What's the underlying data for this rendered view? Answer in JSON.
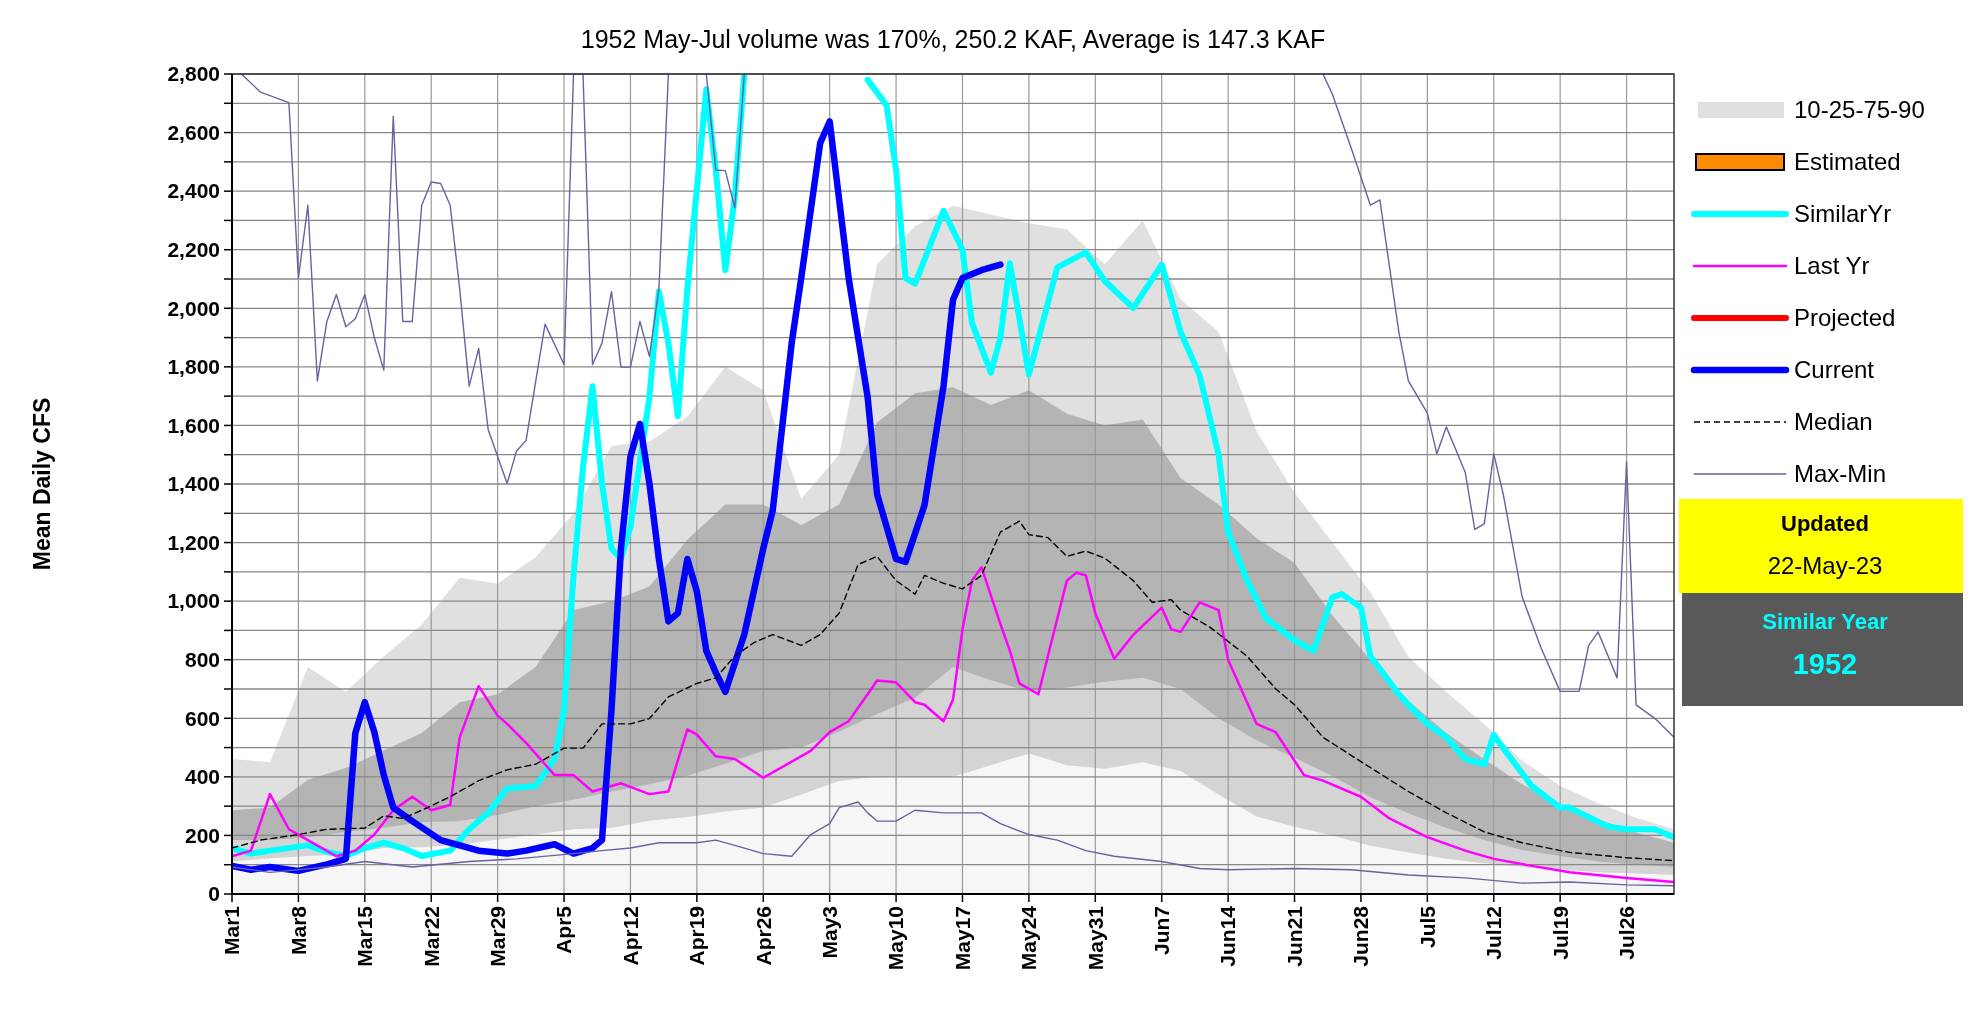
{
  "chart_data": {
    "type": "line",
    "title": "1952 May-Jul volume was 170%, 250.2 KAF, Average is 147.3 KAF",
    "ylabel": "Mean Daily CFS",
    "xlim": [
      "--03-01",
      "--07-31"
    ],
    "xticks": [
      {
        "value": "--03-01",
        "label": "Mar1"
      },
      {
        "value": "--03-08",
        "label": "Mar8"
      },
      {
        "value": "--03-15",
        "label": "Mar15"
      },
      {
        "value": "--03-22",
        "label": "Mar22"
      },
      {
        "value": "--03-29",
        "label": "Mar29"
      },
      {
        "value": "--04-05",
        "label": "Apr5"
      },
      {
        "value": "--04-12",
        "label": "Apr12"
      },
      {
        "value": "--04-19",
        "label": "Apr19"
      },
      {
        "value": "--04-26",
        "label": "Apr26"
      },
      {
        "value": "--05-03",
        "label": "May3"
      },
      {
        "value": "--05-10",
        "label": "May10"
      },
      {
        "value": "--05-17",
        "label": "May17"
      },
      {
        "value": "--05-24",
        "label": "May24"
      },
      {
        "value": "--05-31",
        "label": "May31"
      },
      {
        "value": "--06-07",
        "label": "Jun7"
      },
      {
        "value": "--06-14",
        "label": "Jun14"
      },
      {
        "value": "--06-21",
        "label": "Jun21"
      },
      {
        "value": "--06-28",
        "label": "Jun28"
      },
      {
        "value": "--07-05",
        "label": "Jul5"
      },
      {
        "value": "--07-12",
        "label": "Jul12"
      },
      {
        "value": "--07-19",
        "label": "Jul19"
      },
      {
        "value": "--07-26",
        "label": "Jul26"
      }
    ],
    "ylim": [
      0,
      2800
    ],
    "yticks": [
      0,
      {
        "value": 100,
        "label": null
      },
      200,
      {
        "value": 300,
        "label": null
      },
      400,
      {
        "value": 500,
        "label": null
      },
      600,
      {
        "value": 700,
        "label": null
      },
      800,
      {
        "value": 900,
        "label": null
      },
      {
        "value": 1000,
        "label": "1,000"
      },
      {
        "value": 1100,
        "label": null
      },
      {
        "value": 1200,
        "label": "1,200"
      },
      {
        "value": 1300,
        "label": null
      },
      {
        "value": 1400,
        "label": "1,400"
      },
      {
        "value": 1500,
        "label": null
      },
      {
        "value": 1600,
        "label": "1,600"
      },
      {
        "value": 1700,
        "label": null
      },
      {
        "value": 1800,
        "label": "1,800"
      },
      {
        "value": 1900,
        "label": null
      },
      {
        "value": 2000,
        "label": "2,000"
      },
      {
        "value": 2100,
        "label": null
      },
      {
        "value": 2200,
        "label": "2,200"
      },
      {
        "value": 2300,
        "label": null
      },
      {
        "value": 2400,
        "label": "2,400"
      },
      {
        "value": 2500,
        "label": null
      },
      {
        "value": 2600,
        "label": "2,600"
      },
      {
        "value": 2700,
        "label": null
      },
      {
        "value": 2800,
        "label": "2,800"
      }
    ],
    "grid": true,
    "legend": "right",
    "annotations": [
      "Updated",
      "22-May-23",
      "Similar Year",
      "1952"
    ],
    "x": [
      "--03-01",
      "--03-05",
      "--03-09",
      "--03-13",
      "--03-17",
      "--03-21",
      "--03-25",
      "--03-29",
      "--04-02",
      "--04-06",
      "--04-10",
      "--04-14",
      "--04-18",
      "--04-22",
      "--04-26",
      "--04-30",
      "--05-04",
      "--05-08",
      "--05-12",
      "--05-16",
      "--05-20",
      "--05-24",
      "--05-28",
      "--06-01",
      "--06-05",
      "--06-09",
      "--06-13",
      "--06-17",
      "--06-21",
      "--06-25",
      "--06-29",
      "--07-03",
      "--07-07",
      "--07-11",
      "--07-15",
      "--07-19",
      "--07-23",
      "--07-27",
      "--07-31"
    ],
    "series": [
      {
        "type": "area",
        "name": "10-25-75-90",
        "color": "#e0e0e0",
        "values": [
          461,
          450,
          775,
          690,
          812,
          920,
          1080,
          1060,
          1150,
          1300,
          1530,
          1545,
          1630,
          1800,
          1720,
          1350,
          1500,
          2150,
          2280,
          2350,
          2320,
          2290,
          2270,
          2150,
          2300,
          2030,
          1920,
          1580,
          1370,
          1200,
          1030,
          810,
          690,
          580,
          455,
          370,
          310,
          260,
          221
        ]
      },
      {
        "type": "area",
        "color": "#b4b4b4",
        "values": [
          286,
          295,
          390,
          430,
          490,
          550,
          655,
          682,
          775,
          970,
          1000,
          1050,
          1210,
          1330,
          1330,
          1260,
          1330,
          1610,
          1710,
          1730,
          1670,
          1720,
          1640,
          1600,
          1620,
          1420,
          1330,
          1215,
          1130,
          950,
          800,
          660,
          550,
          460,
          375,
          305,
          255,
          210,
          175
        ]
      },
      {
        "type": "area",
        "color": "#d4d4d4",
        "values": [
          184,
          184,
          194,
          212,
          226,
          245,
          249,
          270,
          300,
          322,
          350,
          375,
          404,
          445,
          489,
          500,
          555,
          615,
          670,
          775,
          730,
          692,
          705,
          725,
          738,
          700,
          600,
          525,
          465,
          403,
          330,
          276,
          226,
          184,
          150,
          130,
          111,
          100,
          92
        ]
      },
      {
        "type": "area",
        "color": "#f6f6f6",
        "values": [
          111,
          122,
          130,
          136,
          157,
          160,
          168,
          186,
          203,
          221,
          225,
          250,
          263,
          282,
          295,
          340,
          386,
          400,
          400,
          400,
          440,
          480,
          440,
          428,
          450,
          420,
          340,
          265,
          230,
          200,
          165,
          142,
          120,
          105,
          93,
          84,
          74,
          70,
          65
        ]
      },
      {
        "type": "area",
        "name": "Estimated",
        "color": "#ff8c00",
        "values": [
          null,
          null,
          null,
          null,
          null,
          null,
          null,
          null,
          null,
          null,
          null,
          null,
          null,
          null,
          null,
          null,
          null,
          null,
          null,
          null,
          null,
          null,
          null,
          null,
          null,
          null,
          null,
          null,
          null,
          null,
          null,
          null,
          null,
          null,
          null,
          null,
          null,
          null,
          null
        ]
      },
      {
        "name": "SimilarYr",
        "color": "#00ffff",
        "x": [
          "--03-01",
          "--03-03",
          "--03-05",
          "--03-09",
          "--03-11",
          "--03-13",
          "--03-15",
          "--03-17",
          "--03-19",
          "--03-21",
          "--03-24",
          "--03-26",
          "--03-28",
          "--03-30",
          "--04-02",
          "--04-04",
          "--04-05",
          "--04-06",
          "--04-07",
          "--04-08",
          "--04-09",
          "--04-10",
          "--04-11",
          "--04-12",
          "--04-14",
          "--04-15",
          "--04-16",
          "--04-17",
          "--04-18",
          "--04-20",
          "--04-21",
          "--04-22",
          "--04-23",
          "--04-24",
          "--04-25",
          "--05-06",
          "--05-07",
          "--05-09",
          "--05-10",
          "--05-11",
          "--05-12",
          "--05-14",
          "--05-15",
          "--05-17",
          "--05-18",
          "--05-20",
          "--05-21",
          "--05-22",
          "--05-24",
          "--05-27",
          "--05-30",
          "--06-01",
          "--06-04",
          "--06-07",
          "--06-09",
          "--06-11",
          "--06-13",
          "--06-14",
          "--06-16",
          "--06-18",
          "--06-21",
          "--06-23",
          "--06-25",
          "--06-26",
          "--06-28",
          "--06-29",
          "--07-02",
          "--07-03",
          "--07-05",
          "--07-07",
          "--07-09",
          "--07-11",
          "--07-12",
          "--07-13",
          "--07-16",
          "--07-19",
          "--07-20",
          "--07-24",
          "--07-26",
          "--07-29",
          "--07-31"
        ],
        "values": [
          157,
          138,
          148,
          166,
          144,
          130,
          157,
          175,
          157,
          130,
          148,
          221,
          277,
          360,
          369,
          461,
          627,
          1088,
          1457,
          1734,
          1402,
          1180,
          1144,
          1254,
          1697,
          2057,
          1881,
          1632,
          2066,
          2748,
          2472,
          2130,
          2380,
          2800,
          null,
          null,
          2780,
          2693,
          2472,
          2103,
          2084,
          2250,
          2333,
          2200,
          1950,
          1780,
          1900,
          2154,
          1774,
          2140,
          2191,
          2093,
          2001,
          2149,
          1918,
          1771,
          1500,
          1236,
          1070,
          941,
          867,
          830,
          1014,
          1024,
          978,
          812,
          682,
          646,
          581,
          535,
          461,
          443,
          544,
          498,
          369,
          295,
          295,
          231,
          221,
          221,
          194
        ]
      },
      {
        "name": "Last Yr",
        "color": "#ff00ff",
        "x": [
          "--03-01",
          "--03-03",
          "--03-05",
          "--03-07",
          "--03-09",
          "--03-12",
          "--03-14",
          "--03-16",
          "--03-18",
          "--03-20",
          "--03-22",
          "--03-24",
          "--03-25",
          "--03-27",
          "--03-29",
          "--03-30",
          "--04-01",
          "--04-03",
          "--04-04",
          "--04-06",
          "--04-08",
          "--04-11",
          "--04-14",
          "--04-16",
          "--04-18",
          "--04-19",
          "--04-21",
          "--04-23",
          "--04-26",
          "--04-29",
          "--05-01",
          "--05-03",
          "--05-05",
          "--05-07",
          "--05-08",
          "--05-10",
          "--05-12",
          "--05-13",
          "--05-15",
          "--05-16",
          "--05-17",
          "--05-18",
          "--05-19",
          "--05-21",
          "--05-22",
          "--05-23",
          "--05-25",
          "--05-26",
          "--05-28",
          "--05-29",
          "--05-30",
          "--05-31",
          "--06-02",
          "--06-04",
          "--06-07",
          "--06-08",
          "--06-09",
          "--06-11",
          "--06-13",
          "--06-14",
          "--06-17",
          "--06-19",
          "--06-22",
          "--06-24",
          "--06-28",
          "--07-01",
          "--07-05",
          "--07-09",
          "--07-12",
          "--07-16",
          "--07-20",
          "--07-26",
          "--07-31"
        ],
        "values": [
          129,
          148,
          341,
          221,
          184,
          129,
          148,
          203,
          286,
          332,
          286,
          304,
          535,
          710,
          609,
          581,
          516,
          443,
          406,
          406,
          350,
          378,
          341,
          350,
          562,
          544,
          470,
          461,
          397,
          452,
          489,
          553,
          590,
          682,
          729,
          723,
          655,
          646,
          590,
          664,
          904,
          1070,
          1116,
          922,
          830,
          719,
          682,
          812,
          1070,
          1097,
          1088,
          959,
          803,
          885,
          978,
          904,
          895,
          996,
          969,
          800,
          581,
          553,
          406,
          387,
          332,
          258,
          194,
          148,
          120,
          96,
          74,
          55,
          41
        ]
      },
      {
        "name": "Projected",
        "color": "#ff0000",
        "values": [
          null,
          null,
          null,
          null,
          null,
          null,
          null,
          null,
          null,
          null,
          null,
          null,
          null,
          null,
          null,
          null,
          null,
          null,
          null,
          null,
          null,
          null,
          null,
          null,
          null,
          null,
          null,
          null,
          null,
          null,
          null,
          null,
          null,
          null,
          null,
          null,
          null,
          null,
          null
        ]
      },
      {
        "name": "Current",
        "color": "#0000ff",
        "x": [
          "--03-01",
          "--03-03",
          "--03-05",
          "--03-08",
          "--03-11",
          "--03-13",
          "--03-14",
          "--03-15",
          "--03-16",
          "--03-17",
          "--03-18",
          "--03-20",
          "--03-23",
          "--03-25",
          "--03-27",
          "--03-30",
          "--04-01",
          "--04-04",
          "--04-06",
          "--04-08",
          "--04-09",
          "--04-10",
          "--04-11",
          "--04-12",
          "--04-13",
          "--04-14",
          "--04-15",
          "--04-16",
          "--04-17",
          "--04-18",
          "--04-19",
          "--04-20",
          "--04-21",
          "--04-22",
          "--04-24",
          "--04-26",
          "--04-27",
          "--04-29",
          "--04-30",
          "--05-02",
          "--05-03",
          "--05-05",
          "--05-07",
          "--05-08",
          "--05-10",
          "--05-11",
          "--05-13",
          "--05-15",
          "--05-16",
          "--05-17",
          "--05-19",
          "--05-21"
        ],
        "values": [
          96,
          83,
          92,
          79,
          101,
          120,
          550,
          655,
          553,
          406,
          295,
          249,
          184,
          166,
          148,
          138,
          148,
          170,
          138,
          157,
          184,
          627,
          1180,
          1494,
          1605,
          1402,
          1144,
          931,
          959,
          1144,
          1033,
          830,
          756,
          690,
          886,
          1180,
          1310,
          1882,
          2103,
          2564,
          2638,
          2103,
          1697,
          1365,
          1144,
          1134,
          1328,
          1734,
          2029,
          2103,
          2130,
          2149
        ]
      },
      {
        "name": "Median",
        "color": "#000000",
        "line_style": "dashed",
        "x": [
          "--03-01",
          "--03-04",
          "--03-08",
          "--03-11",
          "--03-15",
          "--03-17",
          "--03-19",
          "--03-21",
          "--03-24",
          "--03-27",
          "--03-30",
          "--04-02",
          "--04-05",
          "--04-07",
          "--04-09",
          "--04-12",
          "--04-14",
          "--04-16",
          "--04-19",
          "--04-21",
          "--04-23",
          "--04-25",
          "--04-27",
          "--04-30",
          "--05-02",
          "--05-04",
          "--05-06",
          "--05-08",
          "--05-10",
          "--05-12",
          "--05-13",
          "--05-15",
          "--05-17",
          "--05-19",
          "--05-21",
          "--05-23",
          "--05-24",
          "--05-26",
          "--05-28",
          "--05-30",
          "--06-01",
          "--06-04",
          "--06-06",
          "--06-08",
          "--06-09",
          "--06-12",
          "--06-16",
          "--06-19",
          "--06-21",
          "--06-24",
          "--06-28",
          "--07-03",
          "--07-07",
          "--07-11",
          "--07-15",
          "--07-20",
          "--07-26",
          "--07-31"
        ],
        "values": [
          157,
          184,
          203,
          221,
          225,
          267,
          258,
          286,
          332,
          387,
          424,
          443,
          498,
          498,
          581,
          581,
          599,
          673,
          719,
          738,
          812,
          858,
          886,
          849,
          886,
          959,
          1125,
          1153,
          1070,
          1024,
          1088,
          1061,
          1042,
          1088,
          1236,
          1273,
          1227,
          1217,
          1153,
          1171,
          1147,
          1070,
          996,
          1005,
          969,
          913,
          812,
          701,
          646,
          535,
          452,
          350,
          277,
          212,
          175,
          142,
          124,
          114
        ]
      },
      {
        "name": "Max-Min",
        "color": "#6464a0",
        "x": [
          "--03-02",
          "--03-04",
          "--03-07",
          "--03-08",
          "--03-09",
          "--03-10",
          "--03-11",
          "--03-12",
          "--03-13",
          "--03-14",
          "--03-15",
          "--03-16",
          "--03-17",
          "--03-18",
          "--03-19",
          "--03-20",
          "--03-21",
          "--03-22",
          "--03-23",
          "--03-24",
          "--03-25",
          "--03-26",
          "--03-27",
          "--03-28",
          "--03-30",
          "--03-31",
          "--04-01",
          "--04-03",
          "--04-05",
          "--04-06",
          "--04-07",
          "--04-08",
          "--04-09",
          "--04-10",
          "--04-11",
          "--04-12",
          "--04-13",
          "--04-14",
          "--04-15",
          "--04-16",
          "--04-17",
          "--04-20",
          "--04-21",
          "--04-22",
          "--04-23",
          "--04-24",
          "--04-25",
          "--06-24",
          "--06-25",
          "--06-27",
          "--06-29",
          "--06-30",
          "--07-02",
          "--07-03",
          "--07-05",
          "--07-06",
          "--07-07",
          "--07-09",
          "--07-10",
          "--07-11",
          "--07-12",
          "--07-13",
          "--07-15",
          "--07-17",
          "--07-19",
          "--07-21",
          "--07-22",
          "--07-23",
          "--07-25",
          "--07-26",
          "--07-27",
          "--07-29",
          "--07-31"
        ],
        "values": [
          2800,
          2738,
          2702,
          2103,
          2352,
          1752,
          1955,
          2047,
          1937,
          1964,
          2047,
          1900,
          1789,
          2656,
          1955,
          1955,
          2352,
          2431,
          2426,
          2352,
          2066,
          1734,
          1863,
          1586,
          1402,
          1513,
          1549,
          1946,
          1808,
          2800,
          2800,
          1808,
          1881,
          2057,
          1799,
          1799,
          1955,
          1836,
          2066,
          2800,
          null,
          2800,
          2472,
          2470,
          2343,
          2800,
          null,
          2800,
          2730,
          2545,
          2352,
          2370,
          1918,
          1752,
          1642,
          1503,
          1595,
          1439,
          1245,
          1264,
          1503,
          1365,
          1014,
          839,
          692,
          692,
          848,
          895,
          738,
          1475,
          646,
          599,
          535
        ]
      },
      {
        "color": "#6464a0",
        "x": [
          "--03-01",
          "--03-05",
          "--03-11",
          "--03-15",
          "--03-20",
          "--03-26",
          "--03-31",
          "--04-06",
          "--04-09",
          "--04-12",
          "--04-15",
          "--04-19",
          "--04-21",
          "--04-23",
          "--04-26",
          "--04-29",
          "--05-01",
          "--05-03",
          "--05-04",
          "--05-06",
          "--05-07",
          "--05-08",
          "--05-10",
          "--05-12",
          "--05-15",
          "--05-19",
          "--05-21",
          "--05-24",
          "--05-27",
          "--05-30",
          "--06-02",
          "--06-07",
          "--06-11",
          "--06-14",
          "--06-21",
          "--06-27",
          "--07-03",
          "--07-09",
          "--07-15",
          "--07-20",
          "--07-26",
          "--07-31"
        ],
        "values": [
          92,
          74,
          92,
          111,
          92,
          111,
          120,
          138,
          148,
          157,
          175,
          175,
          184,
          166,
          138,
          129,
          203,
          240,
          295,
          314,
          277,
          249,
          249,
          286,
          277,
          277,
          240,
          203,
          184,
          148,
          129,
          111,
          87,
          83,
          87,
          83,
          65,
          55,
          37,
          41,
          31,
          28
        ]
      }
    ]
  }
}
